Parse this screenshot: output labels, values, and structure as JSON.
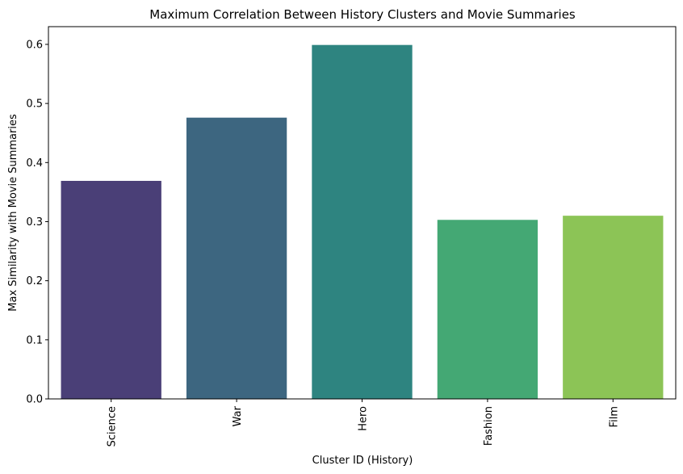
{
  "chart_data": {
    "type": "bar",
    "title": "Maximum Correlation Between History Clusters and Movie Summaries",
    "xlabel": "Cluster ID (History)",
    "ylabel": "Max Similarity with Movie Summaries",
    "categories": [
      "Science",
      "War",
      "Hero",
      "Fashion",
      "Film"
    ],
    "values": [
      0.369,
      0.476,
      0.599,
      0.303,
      0.31
    ],
    "colors": [
      "#4a3f77",
      "#3d6680",
      "#2e8480",
      "#44a874",
      "#8cc456"
    ],
    "ylim": [
      0,
      0.63
    ],
    "yticks": [
      "0.0",
      "0.1",
      "0.2",
      "0.3",
      "0.4",
      "0.5",
      "0.6"
    ],
    "ytick_values": [
      0,
      0.1,
      0.2,
      0.3,
      0.4,
      0.5,
      0.6
    ],
    "grid": false,
    "legend": "none"
  }
}
